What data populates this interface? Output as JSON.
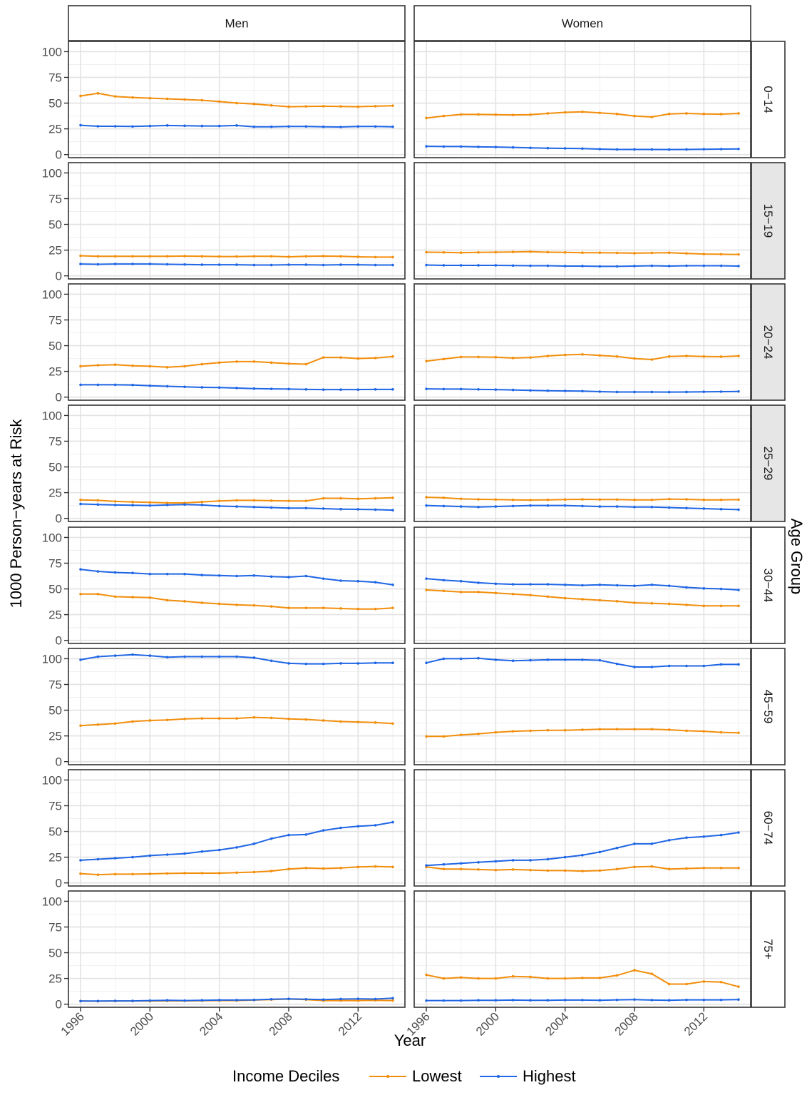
{
  "chart_data": {
    "type": "line",
    "layout": "faceted-grid",
    "xlabel": "Year",
    "ylabel": "1000 Person−years at Risk",
    "facet_row_label": "Age Group",
    "legend": {
      "title": "Income Deciles",
      "placement": "bottom"
    },
    "x": [
      1996,
      1997,
      1998,
      1999,
      2000,
      2001,
      2002,
      2003,
      2004,
      2005,
      2006,
      2007,
      2008,
      2009,
      2010,
      2011,
      2012,
      2013,
      2014
    ],
    "x_ticks": [
      1996,
      2000,
      2004,
      2008,
      2012
    ],
    "x_tick_labels": [
      "1996",
      "2000",
      "2004",
      "2008",
      "2012"
    ],
    "xlim": [
      1995.3,
      2014.7
    ],
    "ylim": [
      -3,
      110
    ],
    "y_ticks": [
      0,
      25,
      50,
      75,
      100
    ],
    "y_tick_labels": [
      "0",
      "25",
      "50",
      "75",
      "100"
    ],
    "grid": true,
    "columns": [
      "Men",
      "Women"
    ],
    "rows": [
      "0−14",
      "15−19",
      "20−24",
      "25−29",
      "30−44",
      "45−59",
      "60−74",
      "75+"
    ],
    "series_meta": [
      {
        "name": "Lowest",
        "color": "#F28E0C"
      },
      {
        "name": "Highest",
        "color": "#1F66E5"
      }
    ],
    "panels": [
      [
        {
          "lowest": [
            57,
            59.5,
            56.5,
            55.5,
            54.8,
            54.2,
            53.5,
            52.8,
            51.5,
            50,
            49.2,
            47.8,
            46.5,
            46.8,
            47,
            46.8,
            46.5,
            47,
            47.5
          ],
          "highest": [
            28.5,
            27.5,
            27.5,
            27.3,
            27.8,
            28.3,
            28,
            27.8,
            27.8,
            28.3,
            27,
            27,
            27.3,
            27.3,
            27,
            26.8,
            27.3,
            27.3,
            27
          ]
        },
        {
          "lowest": [
            35.5,
            37.5,
            39,
            39,
            38.8,
            38.5,
            38.8,
            40,
            41,
            41.5,
            40.5,
            39.5,
            37.5,
            36.5,
            39.5,
            40,
            39.5,
            39.3,
            40
          ],
          "highest": [
            8,
            7.8,
            7.8,
            7.5,
            7.3,
            7,
            6.5,
            6.2,
            6,
            5.8,
            5.3,
            5,
            5,
            5,
            4.9,
            5,
            5.2,
            5.3,
            5.5
          ]
        }
      ],
      [
        {
          "lowest": [
            19.5,
            19,
            19,
            19,
            19,
            19,
            19.2,
            19,
            18.8,
            18.8,
            19,
            19,
            18.5,
            19,
            19.2,
            19,
            18.5,
            18.2,
            18.2
          ],
          "highest": [
            11.5,
            11.2,
            11.5,
            11.5,
            11.5,
            11.2,
            11,
            10.8,
            10.8,
            10.8,
            10.5,
            10.5,
            10.8,
            10.8,
            10.5,
            10.8,
            10.8,
            10.5,
            10.5
          ]
        },
        {
          "lowest": [
            23,
            22.8,
            22.5,
            22.8,
            23,
            23.2,
            23.5,
            23,
            22.8,
            22.5,
            22.5,
            22.3,
            22,
            22.3,
            22.5,
            21.8,
            21.2,
            21,
            20.8
          ],
          "highest": [
            10.5,
            10.2,
            10.2,
            10.2,
            10.2,
            10,
            9.8,
            9.8,
            9.5,
            9.5,
            9.2,
            9.2,
            9.5,
            9.8,
            9.5,
            9.8,
            9.8,
            9.8,
            9.5
          ]
        }
      ],
      [
        {
          "lowest": [
            30,
            31,
            31.5,
            30.5,
            30,
            29,
            30,
            32,
            33.5,
            34.5,
            34.5,
            33.5,
            32.5,
            32,
            38.5,
            38.5,
            37.5,
            38,
            39.5
          ],
          "highest": [
            12,
            12,
            12,
            11.8,
            11,
            10.5,
            10,
            9.5,
            9.3,
            8.8,
            8.3,
            8,
            7.8,
            7.5,
            7.3,
            7.3,
            7.3,
            7.5,
            7.5
          ]
        },
        {
          "lowest": [
            35,
            37,
            39,
            39,
            38.8,
            38,
            38.5,
            40,
            41,
            41.5,
            40.5,
            39.5,
            37.5,
            36.5,
            39.5,
            40,
            39.5,
            39.3,
            40
          ],
          "highest": [
            8,
            7.8,
            7.8,
            7.5,
            7.3,
            7,
            6.5,
            6.2,
            6,
            5.8,
            5.3,
            5,
            5,
            5,
            4.9,
            5,
            5.2,
            5.3,
            5.5
          ]
        }
      ],
      [
        {
          "lowest": [
            18,
            17.5,
            16.5,
            16,
            15.5,
            15,
            15,
            16,
            17,
            17.5,
            17.5,
            17.2,
            17,
            17,
            19.5,
            19.5,
            19,
            19.5,
            20
          ],
          "highest": [
            14,
            13.5,
            13,
            12.8,
            12.5,
            13,
            13.5,
            13,
            12,
            11.5,
            11,
            10.5,
            10,
            10,
            9.5,
            9,
            8.8,
            8.5,
            8
          ]
        },
        {
          "lowest": [
            20.5,
            20,
            19,
            18.5,
            18.3,
            18,
            17.8,
            18,
            18.3,
            18.5,
            18.3,
            18.3,
            18,
            18,
            18.8,
            18.5,
            18,
            18,
            18.2
          ],
          "highest": [
            12.5,
            12,
            11.5,
            11,
            11.5,
            12,
            12.5,
            12.5,
            12.5,
            12,
            11.5,
            11.5,
            11,
            11,
            10.5,
            10,
            9.5,
            9,
            8.5
          ]
        }
      ],
      [
        {
          "lowest": [
            45,
            45,
            42.5,
            42,
            41.5,
            39,
            38,
            36.5,
            35.5,
            34.5,
            34,
            33,
            31.5,
            31.5,
            31.5,
            31,
            30.5,
            30.5,
            31.5
          ],
          "highest": [
            69,
            67,
            66,
            65.5,
            64.5,
            64.5,
            64.5,
            63.5,
            63,
            62.5,
            63,
            62,
            61.5,
            62.5,
            60,
            58,
            57.5,
            56.5,
            54
          ]
        },
        {
          "lowest": [
            49,
            48,
            47,
            47,
            46,
            45,
            44,
            42.5,
            41,
            40,
            39,
            38,
            36.5,
            36,
            35.5,
            34.5,
            33.5,
            33.5,
            33.5
          ],
          "highest": [
            60,
            58.5,
            57.5,
            56,
            55,
            54.5,
            54.5,
            54.5,
            54,
            53.5,
            54,
            53.5,
            53,
            54,
            53,
            51.5,
            50.5,
            50,
            49
          ]
        }
      ],
      [
        {
          "lowest": [
            35,
            36,
            37,
            39,
            40,
            40.5,
            41.5,
            42,
            42,
            42,
            43,
            42.5,
            41.5,
            41,
            40,
            39,
            38.5,
            38,
            37
          ],
          "highest": [
            99,
            102,
            103,
            104,
            103,
            101.5,
            102,
            102,
            102,
            102,
            101,
            98,
            95.5,
            95,
            95,
            95.5,
            95.5,
            96,
            96
          ]
        },
        {
          "lowest": [
            24.5,
            24.5,
            26,
            27,
            28.5,
            29.5,
            30,
            30.5,
            30.5,
            31,
            31.5,
            31.5,
            31.5,
            31.5,
            31,
            30,
            29.5,
            28.5,
            28
          ],
          "highest": [
            96,
            100,
            100,
            100.5,
            99,
            98,
            98.5,
            99,
            99,
            99,
            98.5,
            95,
            92,
            92,
            93,
            93,
            93,
            94.5,
            94.5
          ]
        }
      ],
      [
        {
          "lowest": [
            9,
            8,
            8.5,
            8.5,
            8.8,
            9.2,
            9.5,
            9.5,
            9.5,
            10,
            10.5,
            11.5,
            13.5,
            14.5,
            14,
            14.5,
            15.5,
            16,
            15.5
          ],
          "highest": [
            22,
            23,
            24,
            25,
            26.5,
            27.5,
            28.5,
            30.5,
            32,
            34.5,
            38,
            43,
            46.5,
            47,
            51,
            53.5,
            55,
            56,
            59
          ]
        },
        {
          "lowest": [
            15.5,
            13.5,
            13.5,
            13,
            12.5,
            13,
            12.5,
            12,
            12,
            11.5,
            12,
            13.5,
            15.5,
            16,
            13.5,
            14,
            14.5,
            14.5,
            14.5
          ],
          "highest": [
            17,
            18,
            19,
            20,
            21,
            22,
            22,
            23,
            25,
            27,
            30,
            34,
            38,
            38,
            41.5,
            44,
            45,
            46.5,
            49
          ]
        }
      ],
      [
        {
          "lowest": [
            3,
            2.8,
            3,
            3,
            3,
            3.2,
            3.2,
            3.3,
            3.5,
            3.5,
            4,
            4.5,
            5,
            4.5,
            3.5,
            3.5,
            3.5,
            3.8,
            3.5
          ],
          "highest": [
            3,
            3,
            3.2,
            3.2,
            3.5,
            3.8,
            3.5,
            3.8,
            4,
            4,
            4.2,
            4.8,
            5.2,
            4.8,
            4.5,
            5,
            5.2,
            5,
            5.8
          ]
        },
        {
          "lowest": [
            28.5,
            25,
            26,
            25,
            25,
            27,
            26.5,
            25,
            25,
            25.5,
            25.5,
            28,
            33,
            29.5,
            19.5,
            19.5,
            22,
            21.5,
            17
          ],
          "highest": [
            3.5,
            3.5,
            3.5,
            3.8,
            3.8,
            4,
            3.8,
            3.8,
            4,
            4,
            3.8,
            4.2,
            4.5,
            4,
            3.8,
            4.2,
            4.2,
            4.2,
            4.5
          ]
        }
      ]
    ]
  }
}
